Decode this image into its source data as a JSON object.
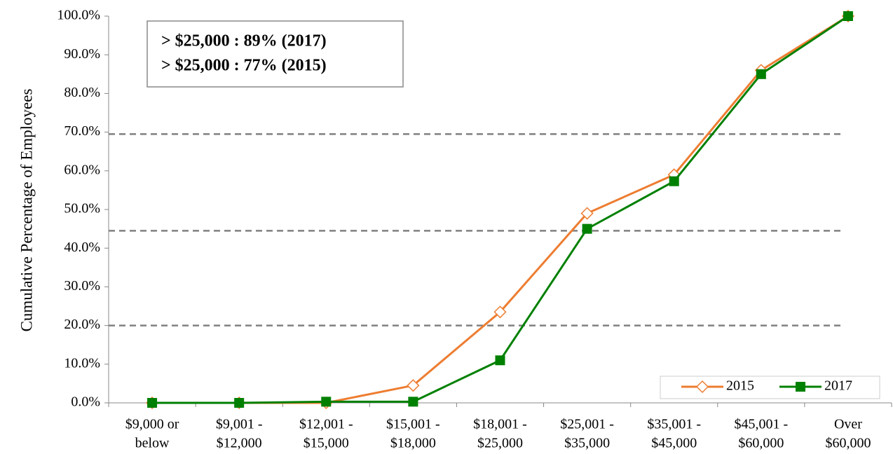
{
  "chart_data": {
    "type": "line",
    "y_label": "Cumulative Percentage of Employees",
    "categories": [
      [
        "$9,000 or",
        "below"
      ],
      [
        "$9,001 -",
        "$12,000"
      ],
      [
        "$12,001 -",
        "$15,000"
      ],
      [
        "$15,001 -",
        "$18,000"
      ],
      [
        "$18,001 -",
        "$25,000"
      ],
      [
        "$25,001 -",
        "$35,000"
      ],
      [
        "$35,001 -",
        "$45,000"
      ],
      [
        "$45,001 -",
        "$60,000"
      ],
      [
        "Over",
        "$60,000"
      ]
    ],
    "series": [
      {
        "name": "2015",
        "color": "#ed7d31",
        "marker": "diamond",
        "values": [
          0,
          0,
          0,
          4.5,
          23.5,
          49,
          59,
          86,
          100
        ]
      },
      {
        "name": "2017",
        "color": "#008000",
        "marker": "square",
        "values": [
          0,
          0,
          0.3,
          0.3,
          11,
          45,
          57.3,
          85,
          100
        ]
      }
    ],
    "ylim": [
      0,
      100
    ],
    "yticks": [
      {
        "value": 0,
        "label": "0.0%"
      },
      {
        "value": 10,
        "label": "10.0%"
      },
      {
        "value": 20,
        "label": "20.0%"
      },
      {
        "value": 30,
        "label": "30.0%"
      },
      {
        "value": 40,
        "label": "40.0%"
      },
      {
        "value": 50,
        "label": "50.0%"
      },
      {
        "value": 60,
        "label": "60.0%"
      },
      {
        "value": 70,
        "label": "70.0%"
      },
      {
        "value": 80,
        "label": "80.0%"
      },
      {
        "value": 90,
        "label": "90.0%"
      },
      {
        "value": 100,
        "label": "100.0%"
      }
    ],
    "reference_lines": [
      20,
      44.5,
      69.5
    ],
    "annotations": [
      {
        "text": "> $25,000 : 89% (2017)",
        "color": "#008000"
      },
      {
        "text": "> $25,000 : 77% (2015)",
        "color": "#ed7d31"
      }
    ],
    "legend": "lower right"
  }
}
